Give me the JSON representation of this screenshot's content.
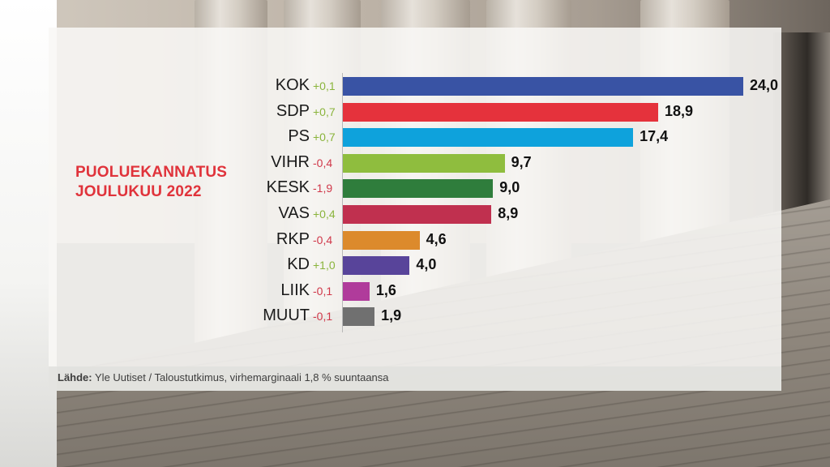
{
  "title": {
    "line1": "PUOLUEKANNATUS",
    "line2": "JOULUKUU 2022",
    "color": "#e0333b"
  },
  "source": {
    "label": "Lähde:",
    "text": "Yle Uutiset / Taloustutkimus, virhemarginaali 1,8 % suuntaansa"
  },
  "colors": {
    "positive_change": "#8ab43c",
    "negative_change": "#d0384a"
  },
  "parties": [
    {
      "name": "KOK",
      "change": "+0,1",
      "value": "24,0",
      "color": "#3953a4"
    },
    {
      "name": "SDP",
      "change": "+0,7",
      "value": "18,9",
      "color": "#e5323c"
    },
    {
      "name": "PS",
      "change": "+0,7",
      "value": "17,4",
      "color": "#0ea2dc"
    },
    {
      "name": "VIHR",
      "change": "-0,4",
      "value": "9,7",
      "color": "#8fbd3e"
    },
    {
      "name": "KESK",
      "change": "-1,9",
      "value": "9,0",
      "color": "#2f7d3c"
    },
    {
      "name": "VAS",
      "change": "+0,4",
      "value": "8,9",
      "color": "#c0304f"
    },
    {
      "name": "RKP",
      "change": "-0,4",
      "value": "4,6",
      "color": "#dc8a2c"
    },
    {
      "name": "KD",
      "change": "+1,0",
      "value": "4,0",
      "color": "#58449a"
    },
    {
      "name": "LIIK",
      "change": "-0,1",
      "value": "1,6",
      "color": "#b03b9b"
    },
    {
      "name": "MUUT",
      "change": "-0,1",
      "value": "1,9",
      "color": "#707070"
    }
  ],
  "chart_data": {
    "type": "bar",
    "orientation": "horizontal",
    "title": "PUOLUEKANNATUS JOULUKUU 2022",
    "categories": [
      "KOK",
      "SDP",
      "PS",
      "VIHR",
      "KESK",
      "VAS",
      "RKP",
      "KD",
      "LIIK",
      "MUUT"
    ],
    "values": [
      24.0,
      18.9,
      17.4,
      9.7,
      9.0,
      8.9,
      4.6,
      4.0,
      1.6,
      1.9
    ],
    "changes": [
      0.1,
      0.7,
      0.7,
      -0.4,
      -1.9,
      0.4,
      -0.4,
      1.0,
      -0.1,
      -0.1
    ],
    "colors": [
      "#3953a4",
      "#e5323c",
      "#0ea2dc",
      "#8fbd3e",
      "#2f7d3c",
      "#c0304f",
      "#dc8a2c",
      "#58449a",
      "#b03b9b",
      "#707070"
    ],
    "xlabel": "",
    "ylabel": "",
    "unit": "%",
    "grid": false,
    "legend": "none",
    "source": "Lähde: Yle Uutiset / Taloustutkimus, virhemarginaali 1,8 % suuntaansa"
  }
}
